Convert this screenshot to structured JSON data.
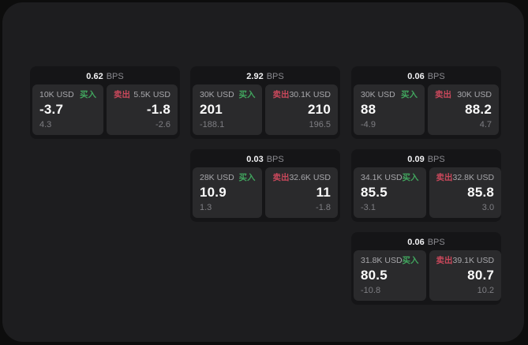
{
  "labels": {
    "buy": "买入",
    "sell": "卖出",
    "bps_unit": "BPS"
  },
  "colors": {
    "buy_green": "#41a55e",
    "sell_red": "#c9485b",
    "surface": "#1d1d1f",
    "card_background": "#151517",
    "cell_background": "#2a2a2c"
  },
  "cards": [
    {
      "bps": "0.62",
      "buy": {
        "amount": "10K USD",
        "value": "-3.7",
        "delta": "4.3"
      },
      "sell": {
        "amount": "5.5K USD",
        "value": "-1.8",
        "delta": "-2.6"
      }
    },
    {
      "bps": "2.92",
      "buy": {
        "amount": "30K USD",
        "value": "201",
        "delta": "-188.1"
      },
      "sell": {
        "amount": "30.1K USD",
        "value": "210",
        "delta": "196.5"
      }
    },
    {
      "bps": "0.06",
      "buy": {
        "amount": "30K USD",
        "value": "88",
        "delta": "-4.9"
      },
      "sell": {
        "amount": "30K USD",
        "value": "88.2",
        "delta": "4.7"
      }
    },
    {
      "bps": "0.03",
      "buy": {
        "amount": "28K USD",
        "value": "10.9",
        "delta": "1.3"
      },
      "sell": {
        "amount": "32.6K USD",
        "value": "11",
        "delta": "-1.8"
      }
    },
    {
      "bps": "0.09",
      "buy": {
        "amount": "34.1K USD",
        "value": "85.5",
        "delta": "-3.1"
      },
      "sell": {
        "amount": "32.8K USD",
        "value": "85.8",
        "delta": "3.0"
      }
    },
    {
      "bps": "0.06",
      "buy": {
        "amount": "31.8K USD",
        "value": "80.5",
        "delta": "-10.8"
      },
      "sell": {
        "amount": "39.1K USD",
        "value": "80.7",
        "delta": "10.2"
      }
    }
  ]
}
